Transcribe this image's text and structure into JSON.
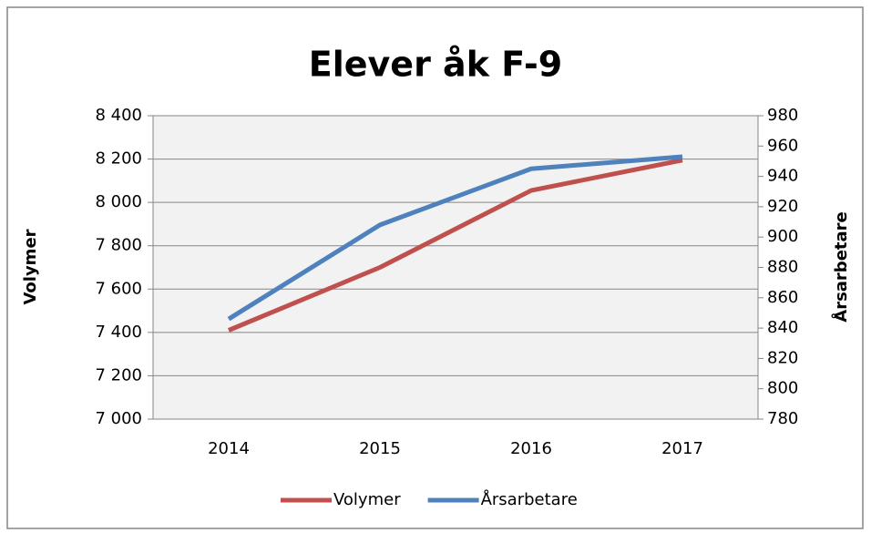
{
  "chart_data": {
    "type": "line",
    "title": "Elever åk F-9",
    "categories": [
      "2014",
      "2015",
      "2016",
      "2017"
    ],
    "y_label": "Volymer",
    "y2_label": "Årsarbetare",
    "series": [
      {
        "name": "Volymer",
        "color": "#c0504d",
        "values": [
          7410,
          7700,
          8055,
          8195
        ]
      },
      {
        "name": "Årsarbetare",
        "color": "#4f81bd",
        "axis": "y2",
        "values": [
          846,
          908,
          945,
          953
        ]
      }
    ],
    "ylim": [
      7000,
      8400
    ],
    "yticks": [
      {
        "value": 7000,
        "label": "7 000"
      },
      {
        "value": 7200,
        "label": "7 200"
      },
      {
        "value": 7400,
        "label": "7 400"
      },
      {
        "value": 7600,
        "label": "7 600"
      },
      {
        "value": 7800,
        "label": "7 800"
      },
      {
        "value": 8000,
        "label": "8 000"
      },
      {
        "value": 8200,
        "label": "8 200"
      },
      {
        "value": 8400,
        "label": "8 400"
      }
    ],
    "y2lim": [
      780,
      980
    ],
    "y2ticks": [
      780,
      800,
      820,
      840,
      860,
      880,
      900,
      920,
      940,
      960,
      980
    ],
    "grid": true,
    "legend": "bottom"
  }
}
